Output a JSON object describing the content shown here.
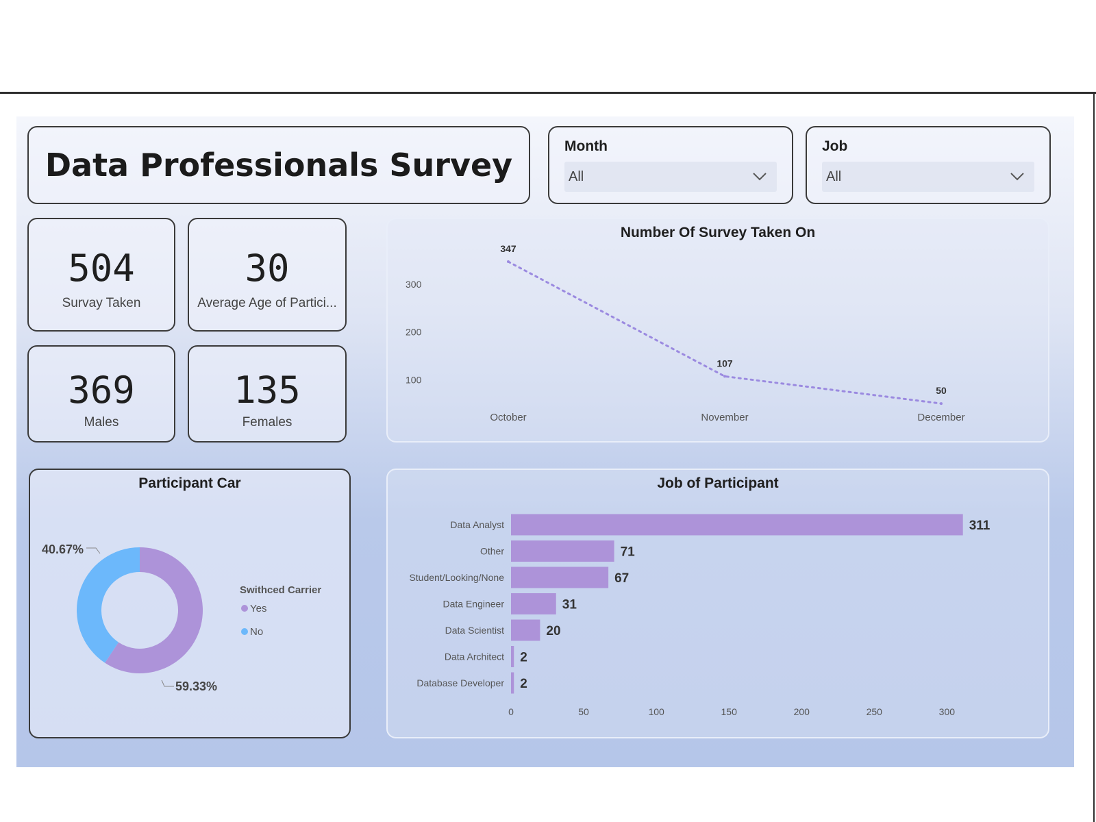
{
  "header": {
    "title": "Data Professionals Survey"
  },
  "slicers": {
    "month": {
      "label": "Month",
      "value": "All"
    },
    "job": {
      "label": "Job",
      "value": "All"
    }
  },
  "kpis": [
    {
      "value": "504",
      "label": "Survay Taken"
    },
    {
      "value": "30",
      "label": "Average Age of Partici..."
    },
    {
      "value": "369",
      "label": "Males"
    },
    {
      "value": "135",
      "label": "Females"
    }
  ],
  "colors": {
    "purple": "#ad93d9",
    "blue": "#6cb8fb",
    "line": "#9b8ae0"
  },
  "chart_data": [
    {
      "type": "line",
      "title": "Number Of Survey Taken On",
      "categories": [
        "October",
        "November",
        "December"
      ],
      "values": [
        347,
        107,
        50
      ],
      "data_labels": [
        "347",
        "107",
        "50"
      ],
      "y_ticks": [
        100,
        200,
        300
      ],
      "y_tick_labels": [
        "100",
        "200",
        "300"
      ],
      "ylim": [
        0,
        370
      ],
      "line_style": "dotted",
      "grid": false
    },
    {
      "type": "bar",
      "orientation": "horizontal",
      "title": "Job of Participant",
      "categories": [
        "Data Analyst",
        "Other",
        "Student/Looking/None",
        "Data Engineer",
        "Data Scientist",
        "Data Architect",
        "Database Developer"
      ],
      "values": [
        311,
        71,
        67,
        31,
        20,
        2,
        2
      ],
      "data_labels": [
        "311",
        "71",
        "67",
        "31",
        "20",
        "2",
        "2"
      ],
      "x_ticks": [
        0,
        50,
        100,
        150,
        200,
        250,
        300
      ],
      "x_tick_labels": [
        "0",
        "50",
        "100",
        "150",
        "200",
        "250",
        "300"
      ],
      "xlim": [
        0,
        330
      ],
      "grid": false
    },
    {
      "type": "pie",
      "style": "donut",
      "title": "Participant Car",
      "legend_title": "Swithced Carrier",
      "legend_position": "right",
      "labels": [
        "Yes",
        "No"
      ],
      "values": [
        59.33,
        40.67
      ],
      "data_labels": [
        "59.33%",
        "40.67%"
      ]
    }
  ]
}
